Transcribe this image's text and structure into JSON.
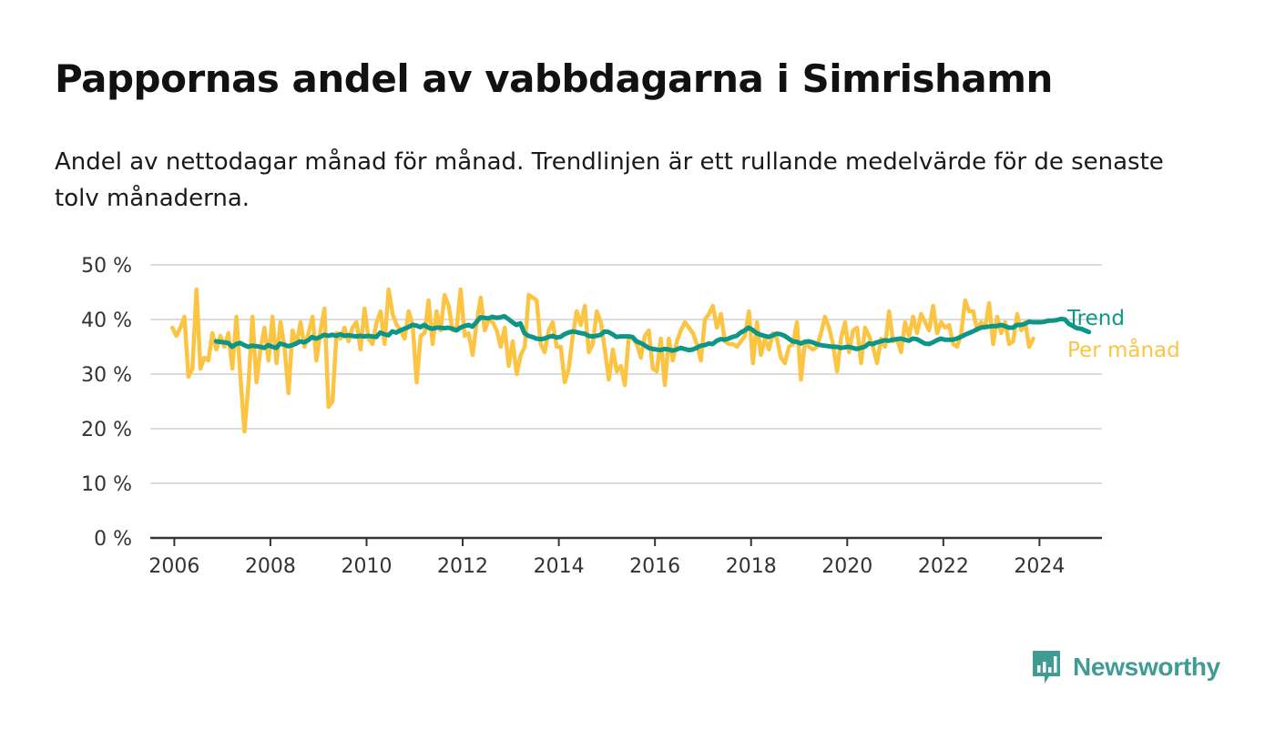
{
  "title": "Pappornas andel av vabbdagarna i Simrishamn",
  "subtitle": "Andel av nettodagar månad för månad. Trendlinjen är ett rullande medelvärde för de senaste tolv månaderna.",
  "brand": {
    "name": "Newsworthy",
    "icon": "newsworthy-logo-icon",
    "color": "#3f9c94"
  },
  "chart_data": {
    "type": "line",
    "title": "Pappornas andel av vabbdagarna i Simrishamn",
    "x_unit": "year",
    "ylim": [
      0,
      50
    ],
    "yticks": [
      0,
      10,
      20,
      30,
      40,
      50
    ],
    "ytick_labels": [
      "0 %",
      "10 %",
      "20 %",
      "30 %",
      "40 %",
      "50 %"
    ],
    "xlim": [
      2005.5,
      2025.3
    ],
    "xticks": [
      2006,
      2008,
      2010,
      2012,
      2014,
      2016,
      2018,
      2020,
      2022,
      2024
    ],
    "xtick_labels": [
      "2006",
      "2008",
      "2010",
      "2012",
      "2014",
      "2016",
      "2018",
      "2020",
      "2022",
      "2024"
    ],
    "grid": true,
    "legend": "right-inline",
    "series": [
      {
        "name": "Per månad",
        "color": "#fcc443",
        "start": 2005.96,
        "step": 0.0833,
        "values": [
          38.5,
          37.0,
          38.5,
          40.5,
          29.5,
          31.0,
          45.5,
          31.0,
          33.0,
          32.5,
          37.5,
          34.5,
          37.0,
          35.0,
          37.5,
          31.0,
          40.5,
          29.5,
          19.5,
          28.0,
          40.5,
          28.5,
          34.5,
          38.5,
          32.5,
          40.5,
          32.0,
          39.5,
          35.0,
          26.5,
          38.0,
          35.5,
          39.5,
          35.0,
          37.5,
          40.5,
          32.5,
          38.0,
          42.0,
          24.0,
          25.0,
          37.5,
          36.5,
          38.5,
          36.0,
          38.5,
          39.5,
          34.5,
          42.0,
          36.5,
          35.5,
          39.5,
          41.5,
          35.5,
          45.5,
          41.0,
          39.0,
          38.0,
          36.5,
          41.5,
          39.0,
          28.5,
          37.0,
          37.5,
          43.5,
          35.5,
          41.5,
          38.0,
          44.5,
          42.5,
          38.0,
          38.5,
          45.5,
          37.0,
          37.5,
          33.5,
          39.5,
          44.0,
          38.0,
          40.0,
          39.5,
          38.0,
          35.0,
          38.5,
          31.5,
          36.0,
          30.0,
          33.5,
          35.0,
          44.5,
          44.0,
          43.5,
          35.5,
          34.0,
          38.0,
          39.5,
          35.0,
          35.0,
          28.5,
          31.0,
          37.0,
          41.5,
          39.0,
          42.5,
          34.0,
          35.5,
          41.5,
          39.5,
          34.5,
          29.0,
          34.5,
          30.5,
          31.5,
          28.0,
          37.0,
          36.5,
          35.5,
          33.0,
          37.0,
          38.0,
          31.0,
          30.5,
          36.5,
          28.0,
          36.5,
          32.5,
          36.0,
          38.0,
          39.5,
          38.5,
          37.5,
          35.5,
          32.5,
          40.0,
          41.0,
          42.5,
          38.5,
          41.0,
          36.0,
          35.5,
          35.5,
          35.0,
          36.0,
          37.0,
          41.5,
          32.0,
          39.5,
          33.5,
          36.5,
          34.5,
          37.5,
          36.5,
          33.0,
          32.0,
          35.0,
          35.5,
          39.5,
          29.0,
          36.0,
          35.0,
          34.5,
          35.0,
          37.5,
          40.5,
          38.5,
          35.5,
          30.5,
          36.5,
          39.5,
          34.0,
          38.0,
          38.5,
          32.0,
          38.5,
          37.0,
          35.0,
          32.0,
          36.5,
          35.0,
          41.5,
          36.0,
          36.5,
          34.0,
          39.5,
          37.0,
          40.5,
          37.5,
          41.0,
          39.5,
          38.0,
          42.5,
          37.5,
          39.5,
          38.5,
          39.0,
          35.5,
          35.0,
          37.5,
          43.5,
          41.5,
          41.5,
          38.0,
          39.5,
          38.5,
          43.0,
          35.5,
          40.5,
          37.5,
          39.5,
          35.5,
          36.0,
          41.0,
          38.0,
          39.5,
          35.0,
          36.5
        ]
      },
      {
        "name": "Trend",
        "color": "#0d9688",
        "start": 2006.87,
        "step": 0.0833,
        "values": [
          36.0,
          35.9,
          35.8,
          35.7,
          35.0,
          35.5,
          35.7,
          35.3,
          35.0,
          35.2,
          35.1,
          35.0,
          34.8,
          35.3,
          35.0,
          34.8,
          35.6,
          35.4,
          35.1,
          35.3,
          35.6,
          36.0,
          35.8,
          36.2,
          36.8,
          36.5,
          36.8,
          37.2,
          37.0,
          37.2,
          37.0,
          37.3,
          37.0,
          37.1,
          37.0,
          36.9,
          37.0,
          36.9,
          37.0,
          36.9,
          36.8,
          37.6,
          37.3,
          37.1,
          37.8,
          37.6,
          38.0,
          38.3,
          38.6,
          39.0,
          38.9,
          38.6,
          39.0,
          38.5,
          38.3,
          38.5,
          38.5,
          38.4,
          38.5,
          38.3,
          38.0,
          38.5,
          38.8,
          39.0,
          38.7,
          39.5,
          40.4,
          40.3,
          40.2,
          40.5,
          40.3,
          40.4,
          40.6,
          40.1,
          39.5,
          39.0,
          39.3,
          37.5,
          37.0,
          36.8,
          36.5,
          36.4,
          36.5,
          36.8,
          37.0,
          36.7,
          36.8,
          37.3,
          37.6,
          37.8,
          37.7,
          37.5,
          37.4,
          37.0,
          36.9,
          37.0,
          37.2,
          37.8,
          37.7,
          37.3,
          36.8,
          36.9,
          36.9,
          36.9,
          36.8,
          36.0,
          35.7,
          35.3,
          34.8,
          34.6,
          34.5,
          34.4,
          34.6,
          34.5,
          34.3,
          34.5,
          34.8,
          34.6,
          34.4,
          34.5,
          34.8,
          35.2,
          35.3,
          35.6,
          35.5,
          36.1,
          36.4,
          36.3,
          36.5,
          36.8,
          37.0,
          37.6,
          38.0,
          38.5,
          38.1,
          37.5,
          37.2,
          37.0,
          36.8,
          37.1,
          37.4,
          37.3,
          37.0,
          36.5,
          36.0,
          35.9,
          35.6,
          35.9,
          36.0,
          35.8,
          35.5,
          35.3,
          35.2,
          35.1,
          35.0,
          35.0,
          34.8,
          34.9,
          35.0,
          34.8,
          34.6,
          34.8,
          35.0,
          35.6,
          35.5,
          35.8,
          36.0,
          36.2,
          36.1,
          36.3,
          36.4,
          36.5,
          36.3,
          36.1,
          36.5,
          36.4,
          36.0,
          35.6,
          35.5,
          35.8,
          36.2,
          36.5,
          36.3,
          36.3,
          36.3,
          36.5,
          36.8,
          37.2,
          37.5,
          37.8,
          38.2,
          38.5,
          38.6,
          38.7,
          38.8,
          38.8,
          39.0,
          38.8,
          38.5,
          38.5,
          39.0,
          39.0,
          39.2,
          39.6,
          39.5,
          39.5,
          39.5,
          39.6,
          39.8,
          39.8,
          39.9,
          40.1,
          40.0,
          39.2,
          38.8,
          38.4,
          38.3,
          38.0,
          37.7
        ]
      }
    ]
  }
}
